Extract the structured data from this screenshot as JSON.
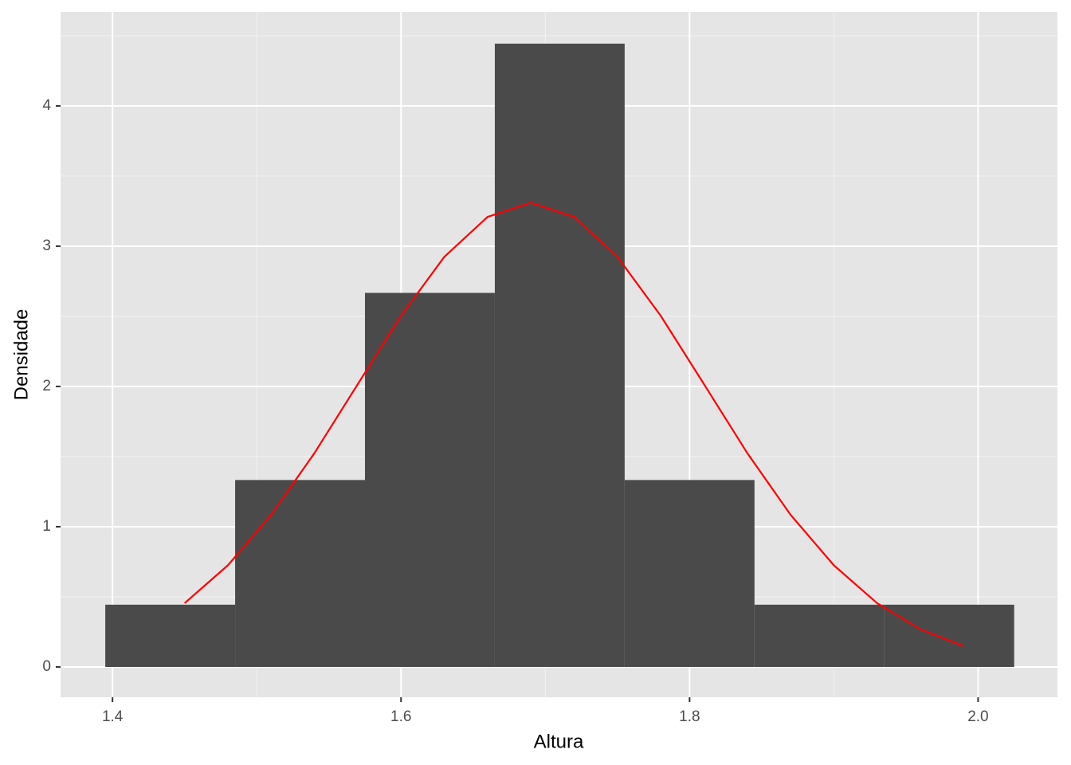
{
  "chart_data": {
    "type": "histogram",
    "x_label": "Altura",
    "y_label": "Densidade",
    "bins": [
      1.395,
      1.485,
      1.575,
      1.665,
      1.755,
      1.845,
      1.935,
      2.025
    ],
    "values": [
      0.444,
      1.333,
      2.667,
      4.444,
      1.333,
      0.444,
      0.444
    ],
    "color": "#4a4a4a",
    "curve": {
      "color": "#ff0000",
      "x": [
        1.45,
        1.48,
        1.51,
        1.54,
        1.57,
        1.6,
        1.63,
        1.66,
        1.69,
        1.72,
        1.75,
        1.78,
        1.81,
        1.84,
        1.87,
        1.9,
        1.93,
        1.96,
        1.99
      ],
      "y": [
        0.455,
        0.725,
        1.085,
        1.525,
        2.016,
        2.504,
        2.924,
        3.209,
        3.31,
        3.209,
        2.924,
        2.504,
        2.016,
        1.525,
        1.085,
        0.725,
        0.455,
        0.269,
        0.149
      ]
    },
    "xlim": [
      1.364,
      2.055
    ],
    "ylim": [
      -0.216,
      4.67
    ],
    "xticks": [
      1.4,
      1.6,
      1.8,
      {
        "value": 2,
        "label": "2.0"
      }
    ],
    "yticks": [
      0,
      1,
      2,
      3,
      4
    ],
    "xminor": [
      1.5,
      1.7,
      1.9
    ],
    "yminor": [
      0.5,
      1.5,
      2.5,
      3.5,
      4.5
    ],
    "grid": true
  }
}
